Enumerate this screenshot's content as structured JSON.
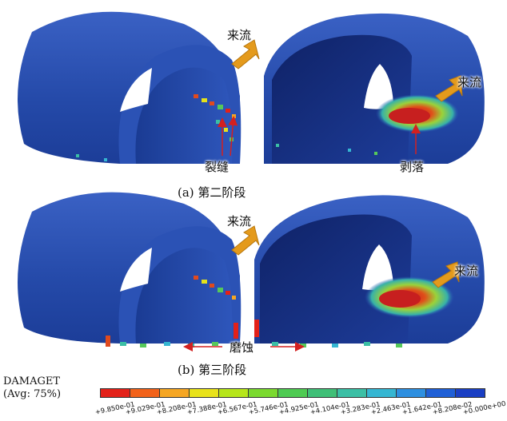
{
  "annotations": {
    "flow_a_left": "来流",
    "flow_a_right": "来流",
    "crack": "裂缝",
    "spall": "剥落",
    "flow_b_left": "来流",
    "flow_b_right": "来流",
    "erosion": "磨蚀"
  },
  "captions": {
    "a": "(a) 第二阶段",
    "b": "(b) 第三阶段"
  },
  "legend": {
    "title_line1": "DAMAGET",
    "title_line2": "(Avg: 75%)",
    "colors": [
      "#e32119",
      "#f2621a",
      "#f5a623",
      "#e8e21a",
      "#b6e61a",
      "#7ad92e",
      "#4ecb52",
      "#3fbf77",
      "#3bbfa5",
      "#35b6d2",
      "#2d8fe0",
      "#1f5fd6",
      "#1a3fc4"
    ],
    "ticks": [
      "+9.850e-01",
      "+9.029e-01",
      "+8.208e-01",
      "+7.388e-01",
      "+6.567e-01",
      "+5.746e-01",
      "+4.925e-01",
      "+4.104e-01",
      "+3.283e-01",
      "+2.463e-01",
      "+1.642e-01",
      "+8.208e-02",
      "+0.000e+00"
    ]
  }
}
